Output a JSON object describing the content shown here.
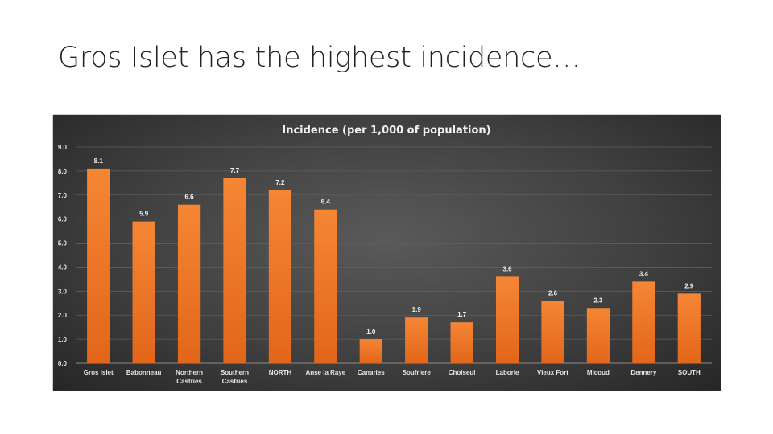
{
  "slide": {
    "title": "Gros Islet has the highest incidence…"
  },
  "chart_data": {
    "type": "bar",
    "title": "Incidence (per 1,000 of population)",
    "xlabel": "",
    "ylabel": "",
    "ylim": [
      0,
      9
    ],
    "yticks": [
      "0.0",
      "1.0",
      "2.0",
      "3.0",
      "4.0",
      "5.0",
      "6.0",
      "7.0",
      "8.0",
      "9.0"
    ],
    "grid": true,
    "legend": "none",
    "bar_color": "#f07f2a",
    "categories": [
      [
        "Gros Islet"
      ],
      [
        "Babonneau"
      ],
      [
        "Northern",
        "Castries"
      ],
      [
        "Southern",
        "Castries"
      ],
      [
        "NORTH"
      ],
      [
        "Anse la Raye"
      ],
      [
        "Canaries"
      ],
      [
        "Soufriere"
      ],
      [
        "Choiseul"
      ],
      [
        "Laborie"
      ],
      [
        "Vieux Fort"
      ],
      [
        "Micoud"
      ],
      [
        "Dennery"
      ],
      [
        "SOUTH"
      ]
    ],
    "values": [
      8.1,
      5.9,
      6.6,
      7.7,
      7.2,
      6.4,
      1.0,
      1.9,
      1.7,
      3.6,
      2.6,
      2.3,
      3.4,
      2.9
    ],
    "data_labels": [
      "8.1",
      "5.9",
      "6.6",
      "7.7",
      "7.2",
      "6.4",
      "1.0",
      "1.9",
      "1.7",
      "3.6",
      "2.6",
      "2.3",
      "3.4",
      "2.9"
    ]
  }
}
